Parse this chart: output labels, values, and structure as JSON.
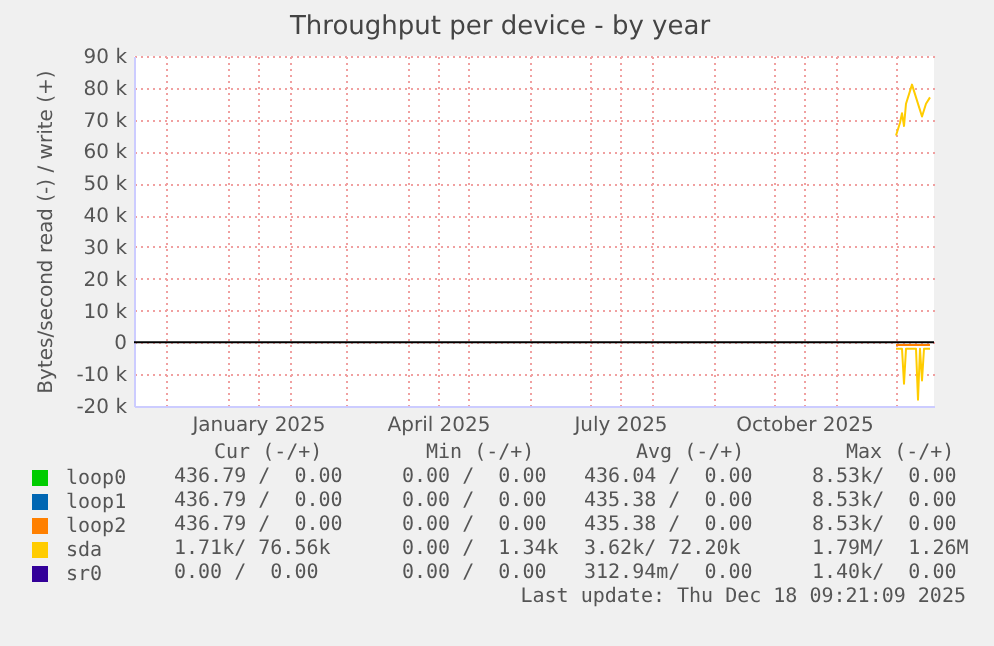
{
  "chart_data": {
    "type": "line",
    "title": "Throughput per device - by year",
    "ylabel": "Bytes/second read (-) / write (+)",
    "xlim": [
      "2024-11-15",
      "2025-12-20"
    ],
    "xticks": [
      {
        "value": "2024-12-01",
        "label": null
      },
      {
        "value": "2025-01-01",
        "label": null
      },
      {
        "value": "2025-01-16",
        "label": "January 2025"
      },
      {
        "value": "2025-02-01",
        "label": null
      },
      {
        "value": "2025-03-01",
        "label": null
      },
      {
        "value": "2025-04-01",
        "label": null
      },
      {
        "value": "2025-04-16",
        "label": "April 2025"
      },
      {
        "value": "2025-05-01",
        "label": null
      },
      {
        "value": "2025-06-01",
        "label": null
      },
      {
        "value": "2025-07-01",
        "label": null
      },
      {
        "value": "2025-07-16",
        "label": "July 2025"
      },
      {
        "value": "2025-08-01",
        "label": null
      },
      {
        "value": "2025-09-01",
        "label": null
      },
      {
        "value": "2025-10-01",
        "label": null
      },
      {
        "value": "2025-10-16",
        "label": "October 2025"
      },
      {
        "value": "2025-11-01",
        "label": null
      },
      {
        "value": "2025-12-01",
        "label": null
      }
    ],
    "ylim": [
      -20000,
      90000
    ],
    "yticks": [
      {
        "value": -20000,
        "label": "-20 k"
      },
      {
        "value": -10000,
        "label": "-10 k"
      },
      {
        "value": 0,
        "label": "0"
      },
      {
        "value": 10000,
        "label": "10 k"
      },
      {
        "value": 20000,
        "label": "20 k"
      },
      {
        "value": 30000,
        "label": "30 k"
      },
      {
        "value": 40000,
        "label": "40 k"
      },
      {
        "value": 50000,
        "label": "50 k"
      },
      {
        "value": 60000,
        "label": "60 k"
      },
      {
        "value": 70000,
        "label": "70 k"
      },
      {
        "value": 80000,
        "label": "80 k"
      },
      {
        "value": 90000,
        "label": "90 k"
      }
    ],
    "grid": true,
    "legend": "bottom left",
    "series": [
      {
        "name": "loop0",
        "color": "#00cc00"
      },
      {
        "name": "loop1",
        "color": "#0066b3"
      },
      {
        "name": "loop2",
        "color": "#ff8000",
        "x": [
          "2025-12-01",
          "2025-12-18"
        ],
        "values": [
          -800,
          -800
        ]
      },
      {
        "name": "sda",
        "color": "#ffcc00",
        "x": [
          "2025-12-01",
          "2025-12-03",
          "2025-12-04",
          "2025-12-05",
          "2025-12-06",
          "2025-12-09",
          "2025-12-11",
          "2025-12-14",
          "2025-12-16",
          "2025-12-18"
        ],
        "values": [
          65000,
          69000,
          72000,
          68000,
          75000,
          81000,
          77000,
          71000,
          75000,
          77000
        ]
      },
      {
        "color": "#ffcc00",
        "x": [
          "2025-12-01",
          "2025-12-04",
          "2025-12-05",
          "2025-12-06",
          "2025-12-11",
          "2025-12-12",
          "2025-12-13",
          "2025-12-14",
          "2025-12-15",
          "2025-12-18"
        ],
        "values": [
          -2000,
          -2000,
          -13000,
          -2000,
          -2000,
          -18000,
          -2000,
          -12000,
          -2000,
          -2000
        ]
      },
      {
        "name": "sr0",
        "color": "#330099"
      }
    ],
    "ref_lines": [
      {
        "axis": "y",
        "value": 0,
        "color": "#000000"
      }
    ],
    "annotations": [
      "Cur (-/+)",
      "Min (-/+)",
      "Avg (-/+)",
      "Max (-/+)",
      "436.79 /  0.00",
      "0.00 /  0.00",
      "436.04 /  0.00",
      "8.53k/  0.00",
      "436.79 /  0.00",
      "0.00 /  0.00",
      "435.38 /  0.00",
      "8.53k/  0.00",
      "436.79 /  0.00",
      "0.00 /  0.00",
      "435.38 /  0.00",
      "8.53k/  0.00",
      "1.71k/ 76.56k",
      "0.00 /  1.34k",
      "3.62k/ 72.20k",
      "1.79M/  1.26M",
      "0.00 /  0.00",
      "0.00 /  0.00",
      "312.94m/  0.00",
      "1.40k/  0.00",
      "Last update: Thu Dec 18 09:21:09 2025"
    ]
  }
}
